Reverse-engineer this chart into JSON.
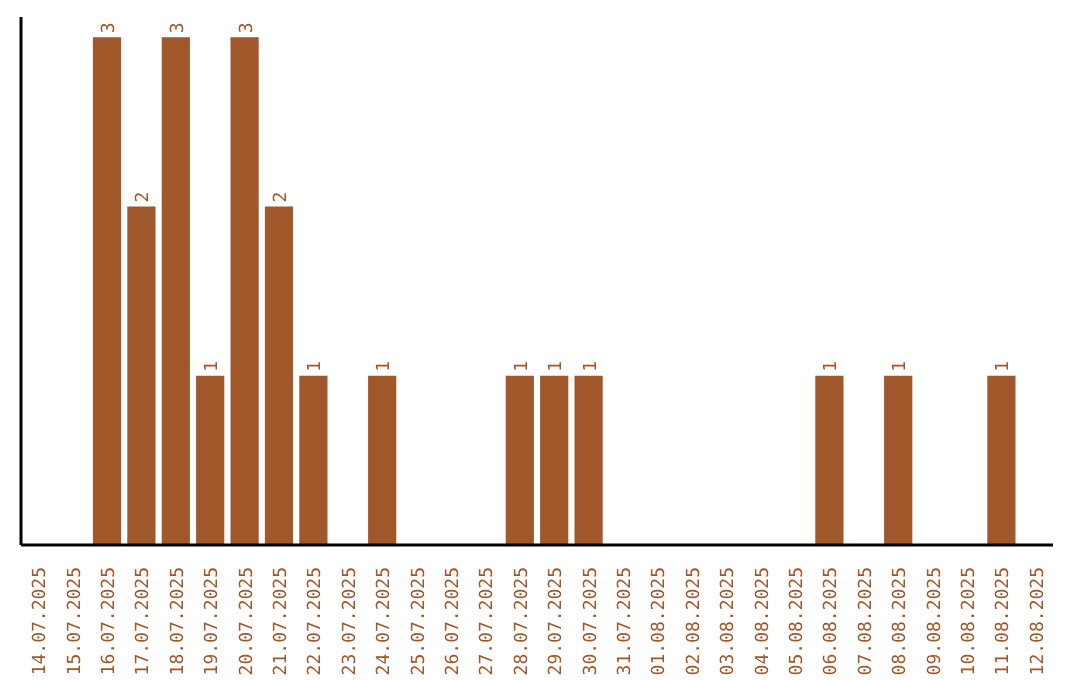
{
  "chart_data": {
    "type": "bar",
    "categories": [
      "14.07.2025",
      "15.07.2025",
      "16.07.2025",
      "17.07.2025",
      "18.07.2025",
      "19.07.2025",
      "20.07.2025",
      "21.07.2025",
      "22.07.2025",
      "23.07.2025",
      "24.07.2025",
      "25.07.2025",
      "26.07.2025",
      "27.07.2025",
      "28.07.2025",
      "29.07.2025",
      "30.07.2025",
      "31.07.2025",
      "01.08.2025",
      "02.08.2025",
      "03.08.2025",
      "04.08.2025",
      "05.08.2025",
      "06.08.2025",
      "07.08.2025",
      "08.08.2025",
      "09.08.2025",
      "10.08.2025",
      "11.08.2025",
      "12.08.2025"
    ],
    "values": [
      0,
      0,
      3,
      2,
      3,
      1,
      3,
      2,
      1,
      0,
      1,
      0,
      0,
      0,
      1,
      1,
      1,
      0,
      0,
      0,
      0,
      0,
      0,
      1,
      0,
      1,
      0,
      0,
      1,
      0
    ],
    "value_labels": [
      null,
      null,
      "3",
      "2",
      "3",
      "1",
      "3",
      "2",
      "1",
      null,
      "1",
      null,
      null,
      null,
      "1",
      "1",
      "1",
      null,
      null,
      null,
      null,
      null,
      null,
      "1",
      null,
      "1",
      null,
      null,
      "1",
      null
    ],
    "color": "#a0572a",
    "tick_labels": "x"
  }
}
